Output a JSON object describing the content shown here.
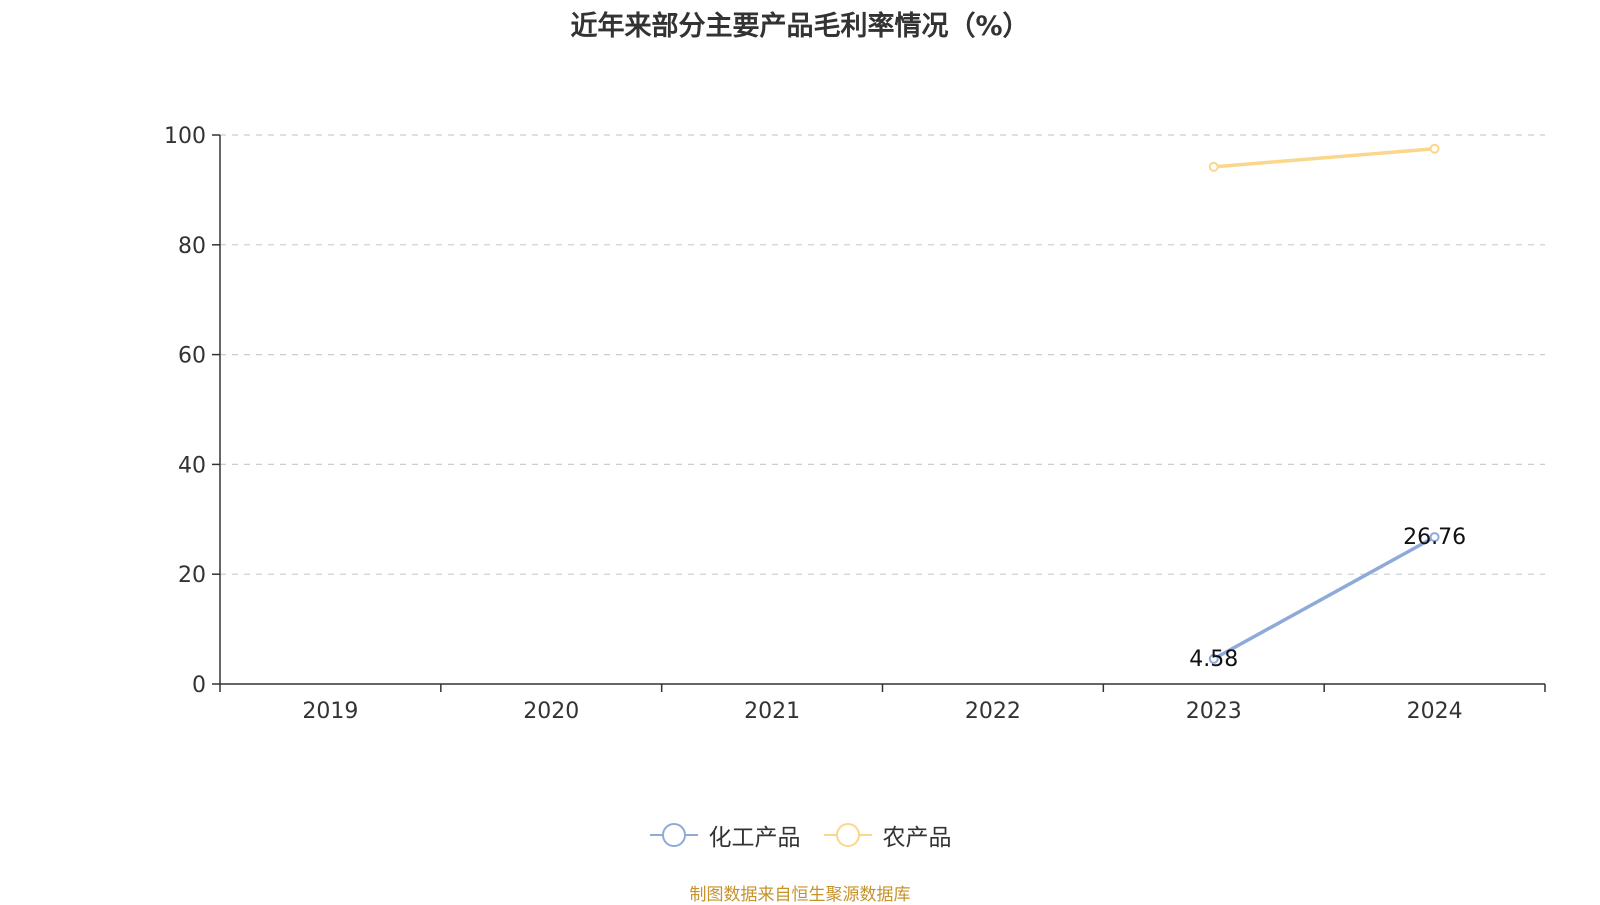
{
  "chart_data": {
    "type": "line",
    "title": "近年来部分主要产品毛利率情况（%）",
    "categories": [
      "2019",
      "2020",
      "2021",
      "2022",
      "2023",
      "2024"
    ],
    "ylim": [
      0,
      100
    ],
    "yticks": [
      0,
      20,
      40,
      60,
      80,
      100
    ],
    "grid": true,
    "legend_position": "bottom",
    "series": [
      {
        "name": "化工产品",
        "color": "#8eaad9",
        "values": [
          null,
          null,
          null,
          null,
          4.58,
          26.76
        ],
        "labels": [
          null,
          null,
          null,
          null,
          "4.58",
          "26.76"
        ]
      },
      {
        "name": "农产品",
        "color": "#fad78c",
        "values": [
          null,
          null,
          null,
          null,
          94.2,
          97.5
        ],
        "labels": [
          null,
          null,
          null,
          null,
          null,
          null
        ]
      }
    ]
  },
  "footer": {
    "source": "制图数据来自恒生聚源数据库"
  }
}
